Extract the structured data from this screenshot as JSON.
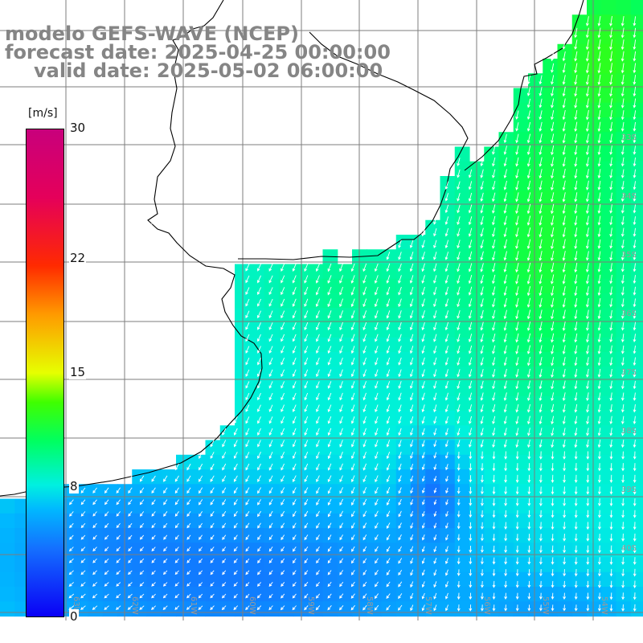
{
  "title": {
    "model": "modelo GEFS-WAVE (NCEP)",
    "forecast": "forecast date: 2025-04-25 00:00:00",
    "valid": "valid date: 2025-05-02 06:00:00"
  },
  "colorbar": {
    "unit": "[m/s]",
    "min": 0,
    "max": 30,
    "ticks": [
      {
        "value": 30,
        "label": "30"
      },
      {
        "value": 22,
        "label": "22"
      },
      {
        "value": 15,
        "label": "15"
      },
      {
        "value": 8,
        "label": "8"
      },
      {
        "value": 0,
        "label": "0"
      }
    ]
  },
  "grid": {
    "lat_labels": [
      "33S",
      "34S",
      "35S",
      "36S",
      "37S",
      "38S",
      "39S",
      "40S"
    ],
    "lon_labels": [
      "63W",
      "62W",
      "61W",
      "60W",
      "59W",
      "58W",
      "57W",
      "56W",
      "55W",
      "54W"
    ]
  }
}
